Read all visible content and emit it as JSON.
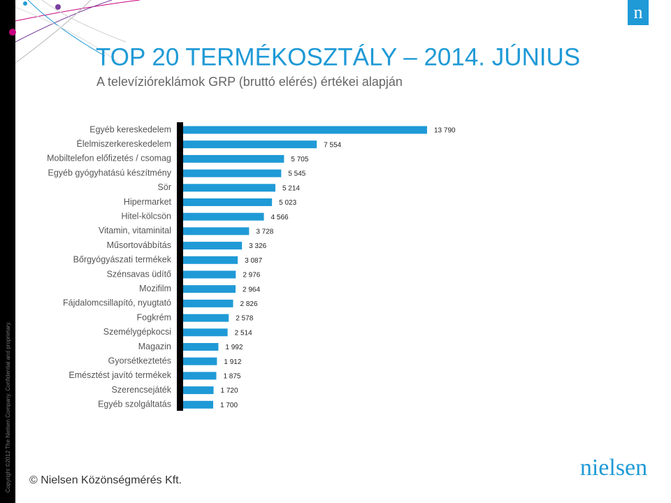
{
  "chart_data": {
    "type": "bar",
    "orientation": "horizontal",
    "title": "TOP 20 TERMÉKOSZTÁLY – 2014. JÚNIUS",
    "subtitle": "A televízióreklámok GRP (bruttó elérés) értékei alapján",
    "color": "#1f9ad6",
    "categories": [
      "Egyéb kereskedelem",
      "Élelmiszerkereskedelem",
      "Mobiltelefon előfizetés / csomag",
      "Egyéb gyógyhatású készítmény",
      "Sör",
      "Hipermarket",
      "Hitel-kölcsön",
      "Vitamin, vitaminital",
      "Műsortovábbítás",
      "Bőrgyógyászati termékek",
      "Szénsavas üdítő",
      "Mozifilm",
      "Fájdalomcsillapító, nyugtató",
      "Fogkrém",
      "Személygépkocsi",
      "Magazin",
      "Gyorsétkeztetés",
      "Emésztést javító termékek",
      "Szerencsejáték",
      "Egyéb szolgáltatás"
    ],
    "values": [
      13790,
      7554,
      5705,
      5545,
      5214,
      5023,
      4566,
      3728,
      3326,
      3087,
      2976,
      2964,
      2826,
      2578,
      2514,
      1992,
      1912,
      1875,
      1720,
      1700
    ],
    "value_labels": [
      "13 790",
      "7 554",
      "5 705",
      "5 545",
      "5 214",
      "5 023",
      "4 566",
      "3 728",
      "3 326",
      "3 087",
      "2 976",
      "2 964",
      "2 826",
      "2 578",
      "2 514",
      "1 992",
      "1 912",
      "1 875",
      "1 720",
      "1 700"
    ]
  },
  "footer": "© Nielsen Közönségmérés Kft.",
  "copyright": "Copyright ©2012 The Nielsen Company. Confidential and proprietary.",
  "logo_small": "n",
  "logo": "nielsen"
}
